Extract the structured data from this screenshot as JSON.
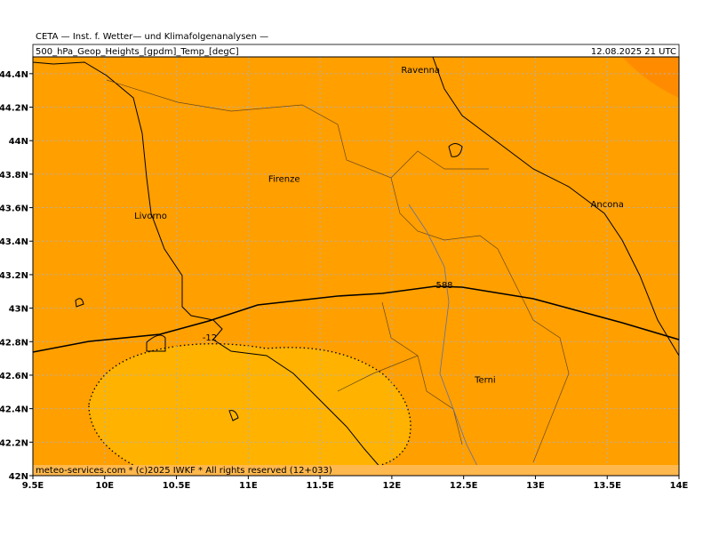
{
  "header": {
    "title": "CETA — Inst. f. Wetter— und Klimafolgenanalysen —",
    "product": "500_hPa_Geop_Heights_[gpdm]_Temp_[degC]",
    "valid": "12.08.2025 21 UTC"
  },
  "map": {
    "xlim": [
      9.5,
      14
    ],
    "ylim": [
      42,
      44.5
    ],
    "xticks": [
      {
        "value": 9.5,
        "label": "9.5E"
      },
      {
        "value": 10,
        "label": "10E"
      },
      {
        "value": 10.5,
        "label": "10.5E"
      },
      {
        "value": 11,
        "label": "11E"
      },
      {
        "value": 11.5,
        "label": "11.5E"
      },
      {
        "value": 12,
        "label": "12E"
      },
      {
        "value": 12.5,
        "label": "12.5E"
      },
      {
        "value": 13,
        "label": "13E"
      },
      {
        "value": 13.5,
        "label": "13.5E"
      },
      {
        "value": 14,
        "label": "14E"
      }
    ],
    "yticks": [
      {
        "value": 42,
        "label": "42N"
      },
      {
        "value": 42.2,
        "label": "42.2N"
      },
      {
        "value": 42.4,
        "label": "42.4N"
      },
      {
        "value": 42.6,
        "label": "42.6N"
      },
      {
        "value": 42.8,
        "label": "42.8N"
      },
      {
        "value": 43,
        "label": "43N"
      },
      {
        "value": 43.2,
        "label": "43.2N"
      },
      {
        "value": 43.4,
        "label": "43.4N"
      },
      {
        "value": 43.6,
        "label": "43.6N"
      },
      {
        "value": 43.8,
        "label": "43.8N"
      },
      {
        "value": 44,
        "label": "44N"
      },
      {
        "value": 44.2,
        "label": "44.2N"
      },
      {
        "value": 44.4,
        "label": "44.4N"
      }
    ],
    "cities": [
      {
        "name": "Ravenna",
        "lon": 12.2,
        "lat": 44.42
      },
      {
        "name": "Firenze",
        "lon": 11.25,
        "lat": 43.77
      },
      {
        "name": "Livorno",
        "lon": 10.32,
        "lat": 43.55
      },
      {
        "name": "Ancona",
        "lon": 13.5,
        "lat": 43.62
      },
      {
        "name": "Terni",
        "lon": 12.65,
        "lat": 42.57
      }
    ],
    "contours": [
      {
        "value": 588
      },
      {
        "value": -12
      }
    ],
    "footer": "meteo-services.com * (c)2025 IWKF * All rights reserved (12+033)"
  }
}
